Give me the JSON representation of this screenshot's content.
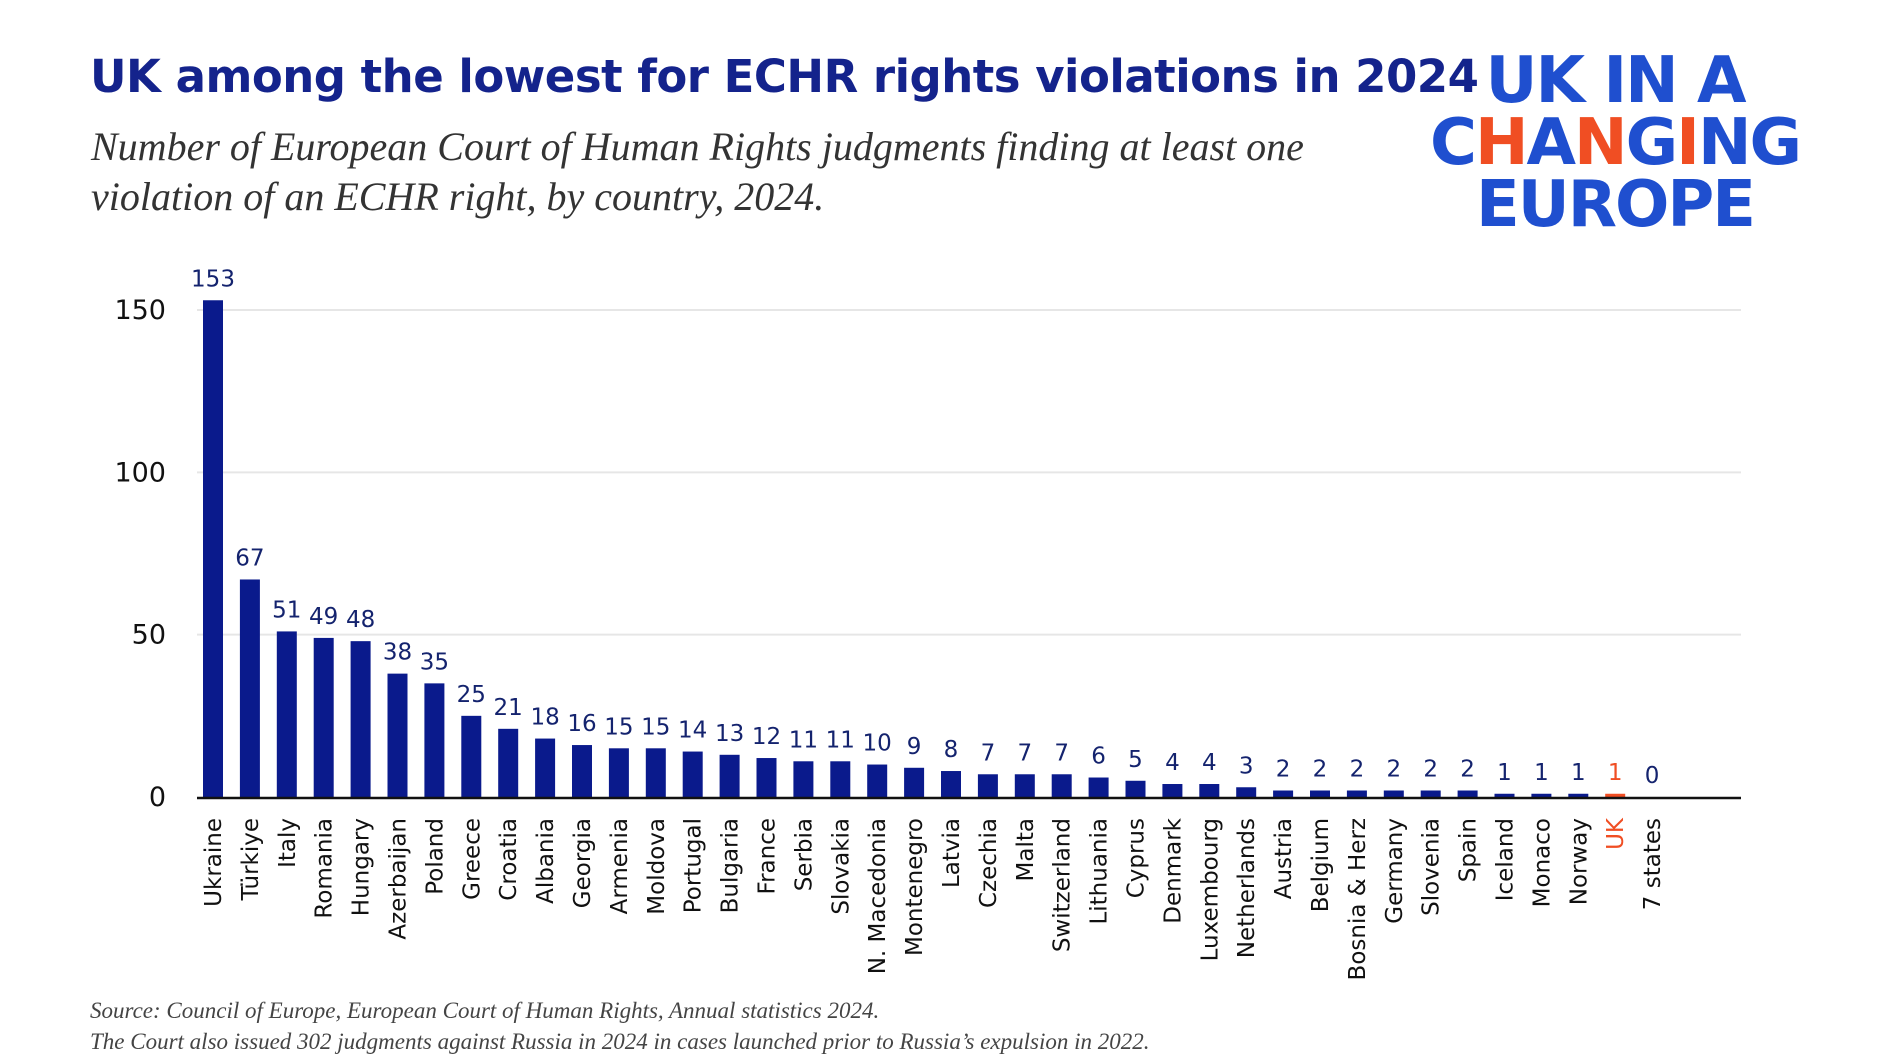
{
  "header": {
    "title": "UK among the lowest for ECHR rights violations in 2024",
    "subtitle": "Number of European Court of Human Rights judgments finding at least one violation of an ECHR right, by country, 2024."
  },
  "logo": {
    "line1": "UK IN A",
    "line2": "CHANGING",
    "line3": "EUROPE",
    "colors": {
      "blue": "#1f4fcf",
      "accent": "#f04e23"
    }
  },
  "chart_data": {
    "type": "bar",
    "title": "",
    "xlabel": "",
    "ylabel": "",
    "ylim": [
      0,
      150
    ],
    "yticks": [
      0,
      50,
      100,
      150
    ],
    "grid": true,
    "categories": [
      "Ukraine",
      "Türkiye",
      "Italy",
      "Romania",
      "Hungary",
      "Azerbaijan",
      "Poland",
      "Greece",
      "Croatia",
      "Albania",
      "Georgia",
      "Armenia",
      "Moldova",
      "Portugal",
      "Bulgaria",
      "France",
      "Serbia",
      "Slovakia",
      "N. Macedonia",
      "Montenegro",
      "Latvia",
      "Czechia",
      "Malta",
      "Switzerland",
      "Lithuania",
      "Cyprus",
      "Denmark",
      "Luxembourg",
      "Netherlands",
      "Austria",
      "Belgium",
      "Bosnia & Herz",
      "Germany",
      "Slovenia",
      "Spain",
      "Iceland",
      "Monaco",
      "Norway",
      "UK",
      "7 states"
    ],
    "values": [
      153,
      67,
      51,
      49,
      48,
      38,
      35,
      25,
      21,
      18,
      16,
      15,
      15,
      14,
      13,
      12,
      11,
      11,
      10,
      9,
      8,
      7,
      7,
      7,
      6,
      5,
      4,
      4,
      3,
      2,
      2,
      2,
      2,
      2,
      2,
      1,
      1,
      1,
      1,
      0
    ],
    "highlight": "UK",
    "colors": {
      "bar": "#0a1a8c",
      "highlight": "#f04e23",
      "label": "#14236e"
    }
  },
  "footer": {
    "source": "Source: Council of Europe, European Court of Human Rights, Annual statistics 2024.",
    "note": "The Court also issued 302 judgments against Russia in 2024 in cases launched prior to Russia’s expulsion in 2022."
  }
}
